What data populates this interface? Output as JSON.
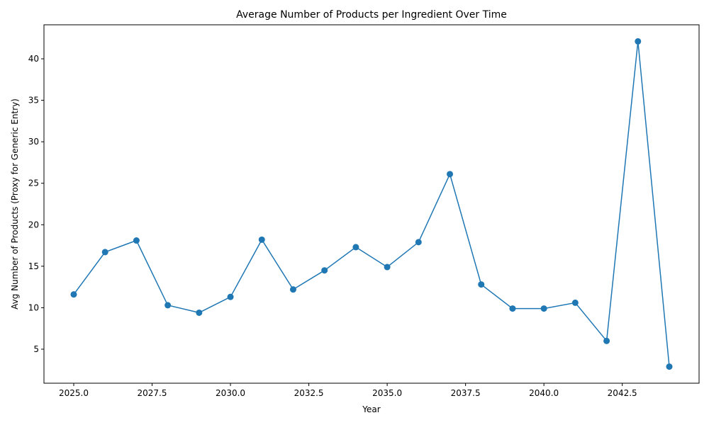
{
  "chart_data": {
    "type": "line",
    "title": "Average Number of Products per Ingredient Over Time",
    "xlabel": "Year",
    "ylabel": "Avg Number of Products (Proxy for Generic Entry)",
    "xlim": [
      2024.05,
      2044.95
    ],
    "ylim": [
      0.9,
      44.1
    ],
    "xticks": [
      "2025.0",
      "2027.5",
      "2030.0",
      "2032.5",
      "2035.0",
      "2037.5",
      "2040.0",
      "2042.5"
    ],
    "xtick_values": [
      2025,
      2027.5,
      2030,
      2032.5,
      2035,
      2037.5,
      2040,
      2042.5
    ],
    "yticks": [
      "5",
      "10",
      "15",
      "20",
      "25",
      "30",
      "35",
      "40"
    ],
    "ytick_values": [
      5,
      10,
      15,
      20,
      25,
      30,
      35,
      40
    ],
    "grid": false,
    "series": [
      {
        "color": "#1f77b4",
        "x": [
          2025,
          2026,
          2027,
          2028,
          2029,
          2030,
          2031,
          2032,
          2033,
          2034,
          2035,
          2036,
          2037,
          2038,
          2039,
          2040,
          2041,
          2042,
          2043,
          2044
        ],
        "y": [
          11.6,
          16.7,
          18.1,
          10.3,
          9.4,
          11.3,
          18.2,
          12.2,
          14.5,
          17.3,
          14.9,
          17.9,
          26.1,
          12.8,
          9.9,
          9.9,
          10.6,
          6.0,
          42.1,
          2.9
        ]
      }
    ]
  }
}
